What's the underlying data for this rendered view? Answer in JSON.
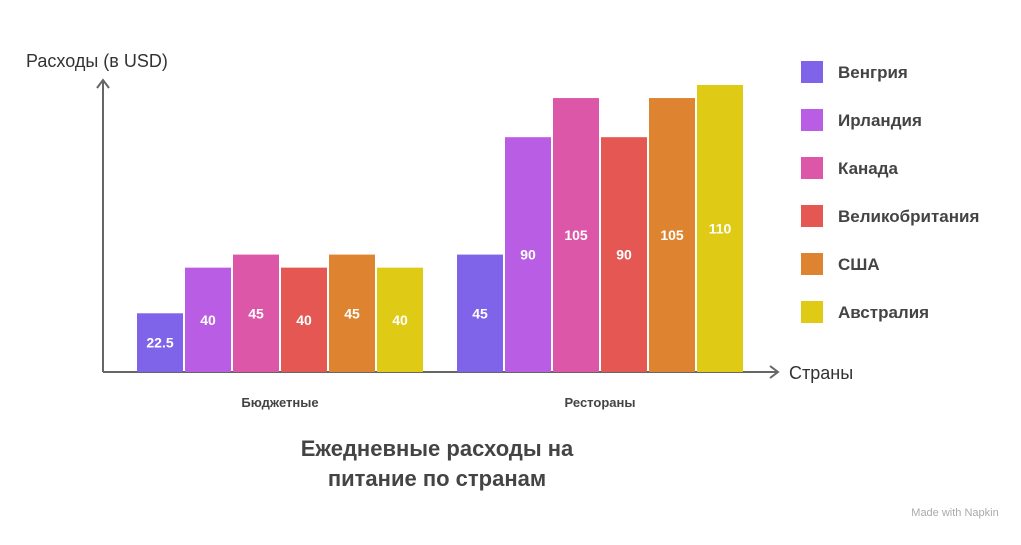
{
  "chart_data": {
    "type": "bar",
    "title": "Ежедневные расходы на питание по странам",
    "title_lines": [
      "Ежедневные расходы на",
      "питание по странам"
    ],
    "ylabel": "Расходы (в USD)",
    "xlabel": "Страны",
    "categories": [
      "Бюджетные",
      "Рестораны"
    ],
    "ylim": [
      0,
      110
    ],
    "grid": false,
    "legend_position": "right",
    "series": [
      {
        "name": "Венгрия",
        "color": "#7f63e8",
        "values": [
          22.5,
          45
        ]
      },
      {
        "name": "Ирландия",
        "color": "#b95ee4",
        "values": [
          40,
          90
        ]
      },
      {
        "name": "Канада",
        "color": "#dc57a8",
        "values": [
          45,
          105
        ]
      },
      {
        "name": "Великобритания",
        "color": "#e45753",
        "values": [
          40,
          90
        ]
      },
      {
        "name": "США",
        "color": "#de8430",
        "values": [
          45,
          105
        ]
      },
      {
        "name": "Австралия",
        "color": "#dfcb16",
        "values": [
          40,
          110
        ]
      }
    ]
  },
  "watermark": "Made with Napkin"
}
